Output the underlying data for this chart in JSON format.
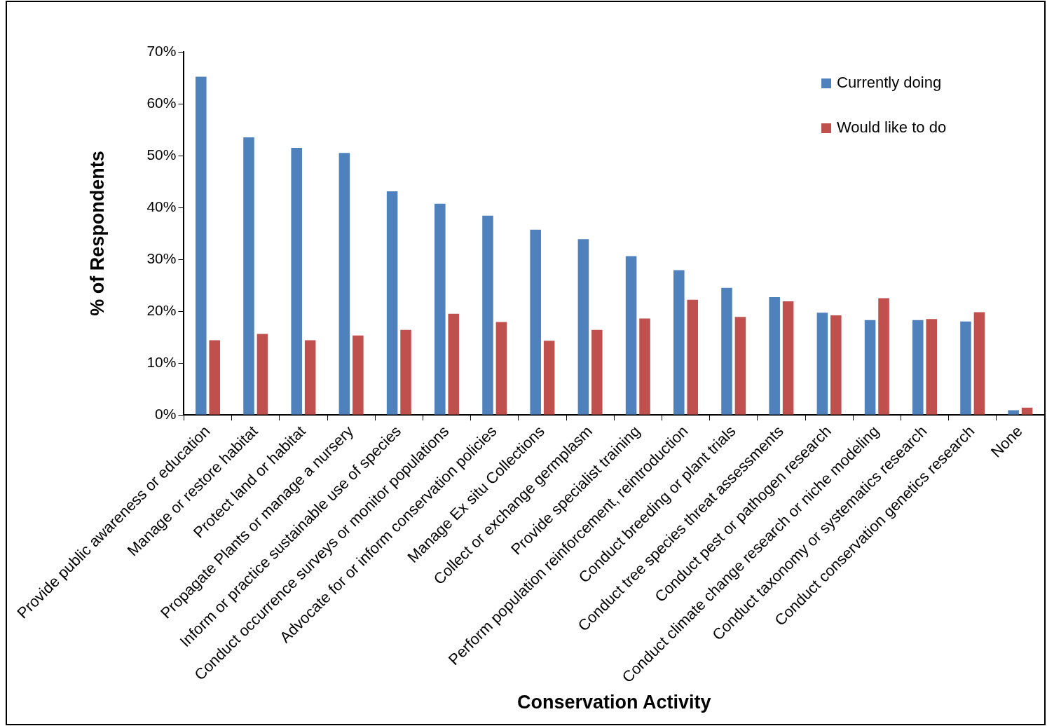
{
  "chart_data": {
    "type": "bar",
    "xlabel": "Conservation Activity",
    "ylabel": "% of Respondents",
    "categories": [
      "Provide public awareness or education",
      "Manage or restore habitat",
      "Protect land or habitat",
      "Propagate Plants or manage a nursery",
      "Inform or practice sustainable use of species",
      "Conduct occurrence surveys or monitor populations",
      "Advocate for or inform conservation policies",
      "Manage Ex situ Collections",
      "Collect or exchange germplasm",
      "Provide specialist training",
      "Perform population reinforcement, reintroduction",
      "Conduct breeding or plant trials",
      "Conduct tree species threat assessments",
      "Conduct pest or pathogen research",
      "Conduct climate change research or niche modeling",
      "Conduct taxonomy or systematics research",
      "Conduct conservation genetics research",
      "None"
    ],
    "series": [
      {
        "name": "Currently doing",
        "color": "#4f81bd",
        "values": [
          65.2,
          53.5,
          51.5,
          50.5,
          43.1,
          40.7,
          38.4,
          35.7,
          33.9,
          30.6,
          27.9,
          24.5,
          22.7,
          19.7,
          18.3,
          18.3,
          18.0,
          0.9
        ]
      },
      {
        "name": "Would like to do",
        "color": "#c0504d",
        "values": [
          14.4,
          15.6,
          14.4,
          15.3,
          16.4,
          19.5,
          17.9,
          14.3,
          16.4,
          18.6,
          22.2,
          18.9,
          21.9,
          19.2,
          22.5,
          18.5,
          19.8,
          1.4
        ]
      }
    ],
    "ylim": [
      0,
      70
    ],
    "yticks": [
      {
        "value": 0,
        "label": "0%"
      },
      {
        "value": 10,
        "label": "10%"
      },
      {
        "value": 20,
        "label": "20%"
      },
      {
        "value": 30,
        "label": "30%"
      },
      {
        "value": 40,
        "label": "40%"
      },
      {
        "value": 50,
        "label": "50%"
      },
      {
        "value": 60,
        "label": "60%"
      },
      {
        "value": 70,
        "label": "70%"
      }
    ],
    "grid": false,
    "legend": "top right"
  }
}
